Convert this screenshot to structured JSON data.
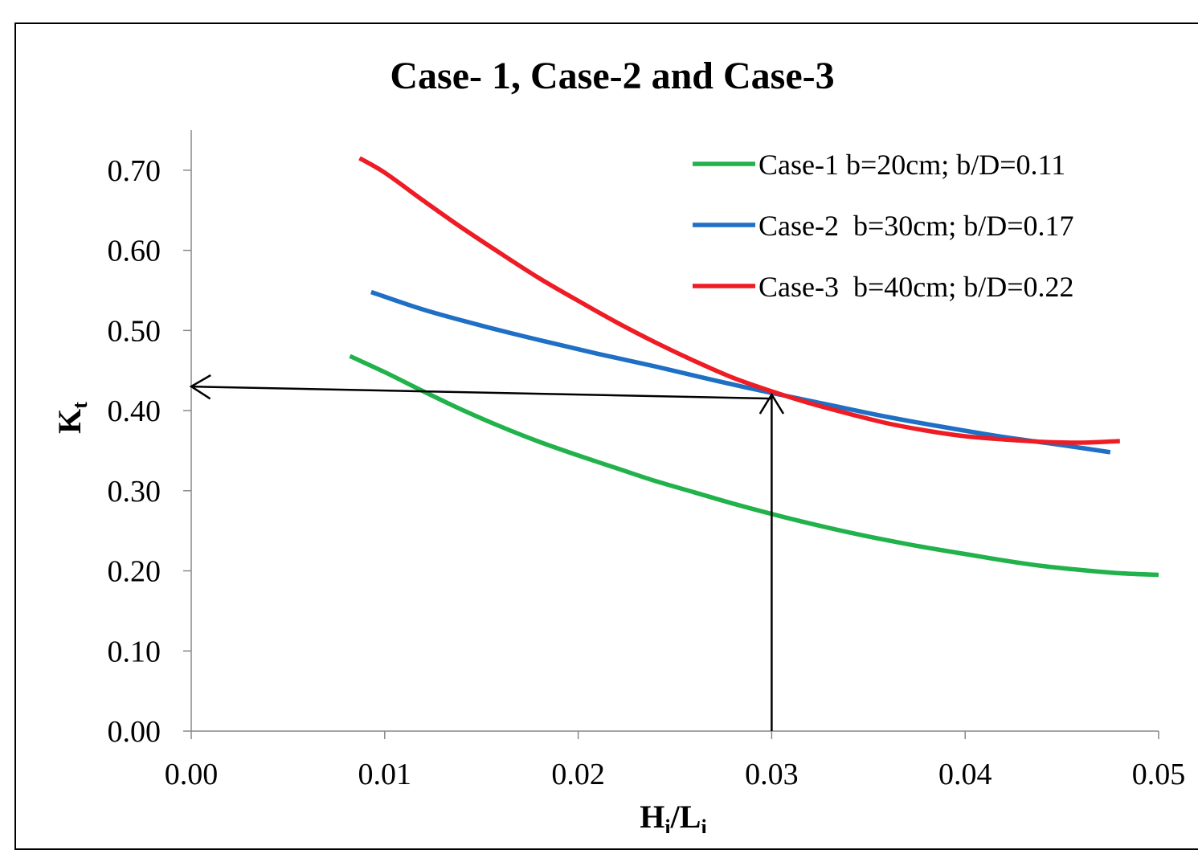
{
  "chart_data": {
    "type": "line",
    "title": "Case- 1, Case-2 and Case-3",
    "xlabel": {
      "main": "H",
      "sub1": "i",
      "slash": "/L",
      "sub2": "i"
    },
    "ylabel": {
      "main": "K",
      "sub": "t"
    },
    "xlim": [
      0,
      0.05
    ],
    "ylim": [
      0,
      0.75
    ],
    "x_ticks": [
      "0.00",
      "0.01",
      "0.02",
      "0.03",
      "0.04",
      "0.05"
    ],
    "x_tick_values": [
      0,
      0.01,
      0.02,
      0.03,
      0.04,
      0.05
    ],
    "y_ticks": [
      "0.00",
      "0.10",
      "0.20",
      "0.30",
      "0.40",
      "0.50",
      "0.60",
      "0.70"
    ],
    "y_tick_values": [
      0,
      0.1,
      0.2,
      0.3,
      0.4,
      0.5,
      0.6,
      0.7
    ],
    "legend_position": "top-right",
    "series": [
      {
        "name": "Case-1 b=20cm; b/D=0.11",
        "color": "#21b24b",
        "x": [
          0.0082,
          0.01,
          0.012,
          0.014,
          0.016,
          0.018,
          0.02,
          0.022,
          0.024,
          0.026,
          0.028,
          0.03,
          0.032,
          0.034,
          0.036,
          0.038,
          0.04,
          0.042,
          0.044,
          0.046,
          0.048,
          0.05
        ],
        "y": [
          0.468,
          0.448,
          0.424,
          0.401,
          0.38,
          0.361,
          0.344,
          0.328,
          0.312,
          0.298,
          0.284,
          0.271,
          0.259,
          0.248,
          0.238,
          0.229,
          0.221,
          0.213,
          0.206,
          0.201,
          0.197,
          0.195
        ]
      },
      {
        "name": "Case-2  b=30cm; b/D=0.17",
        "color": "#1f6fc5",
        "x": [
          0.0093,
          0.012,
          0.015,
          0.018,
          0.021,
          0.024,
          0.027,
          0.03,
          0.033,
          0.036,
          0.039,
          0.042,
          0.045,
          0.0475
        ],
        "y": [
          0.548,
          0.526,
          0.506,
          0.488,
          0.471,
          0.455,
          0.438,
          0.422,
          0.407,
          0.392,
          0.379,
          0.367,
          0.357,
          0.348
        ]
      },
      {
        "name": "Case-3  b=40cm; b/D=0.22",
        "color": "#ee1c24",
        "x": [
          0.0087,
          0.01,
          0.012,
          0.014,
          0.016,
          0.018,
          0.02,
          0.022,
          0.024,
          0.026,
          0.028,
          0.03,
          0.032,
          0.034,
          0.036,
          0.038,
          0.04,
          0.042,
          0.044,
          0.046,
          0.048
        ],
        "y": [
          0.715,
          0.697,
          0.662,
          0.628,
          0.596,
          0.565,
          0.537,
          0.51,
          0.485,
          0.462,
          0.441,
          0.424,
          0.409,
          0.396,
          0.384,
          0.375,
          0.368,
          0.364,
          0.361,
          0.36,
          0.362
        ]
      }
    ],
    "annotations": {
      "arrows": [
        {
          "from": [
            0.03,
            0.0
          ],
          "to": [
            0.03,
            0.42
          ]
        },
        {
          "from": [
            0.03,
            0.415
          ],
          "to": [
            0.0,
            0.43
          ]
        }
      ]
    }
  }
}
